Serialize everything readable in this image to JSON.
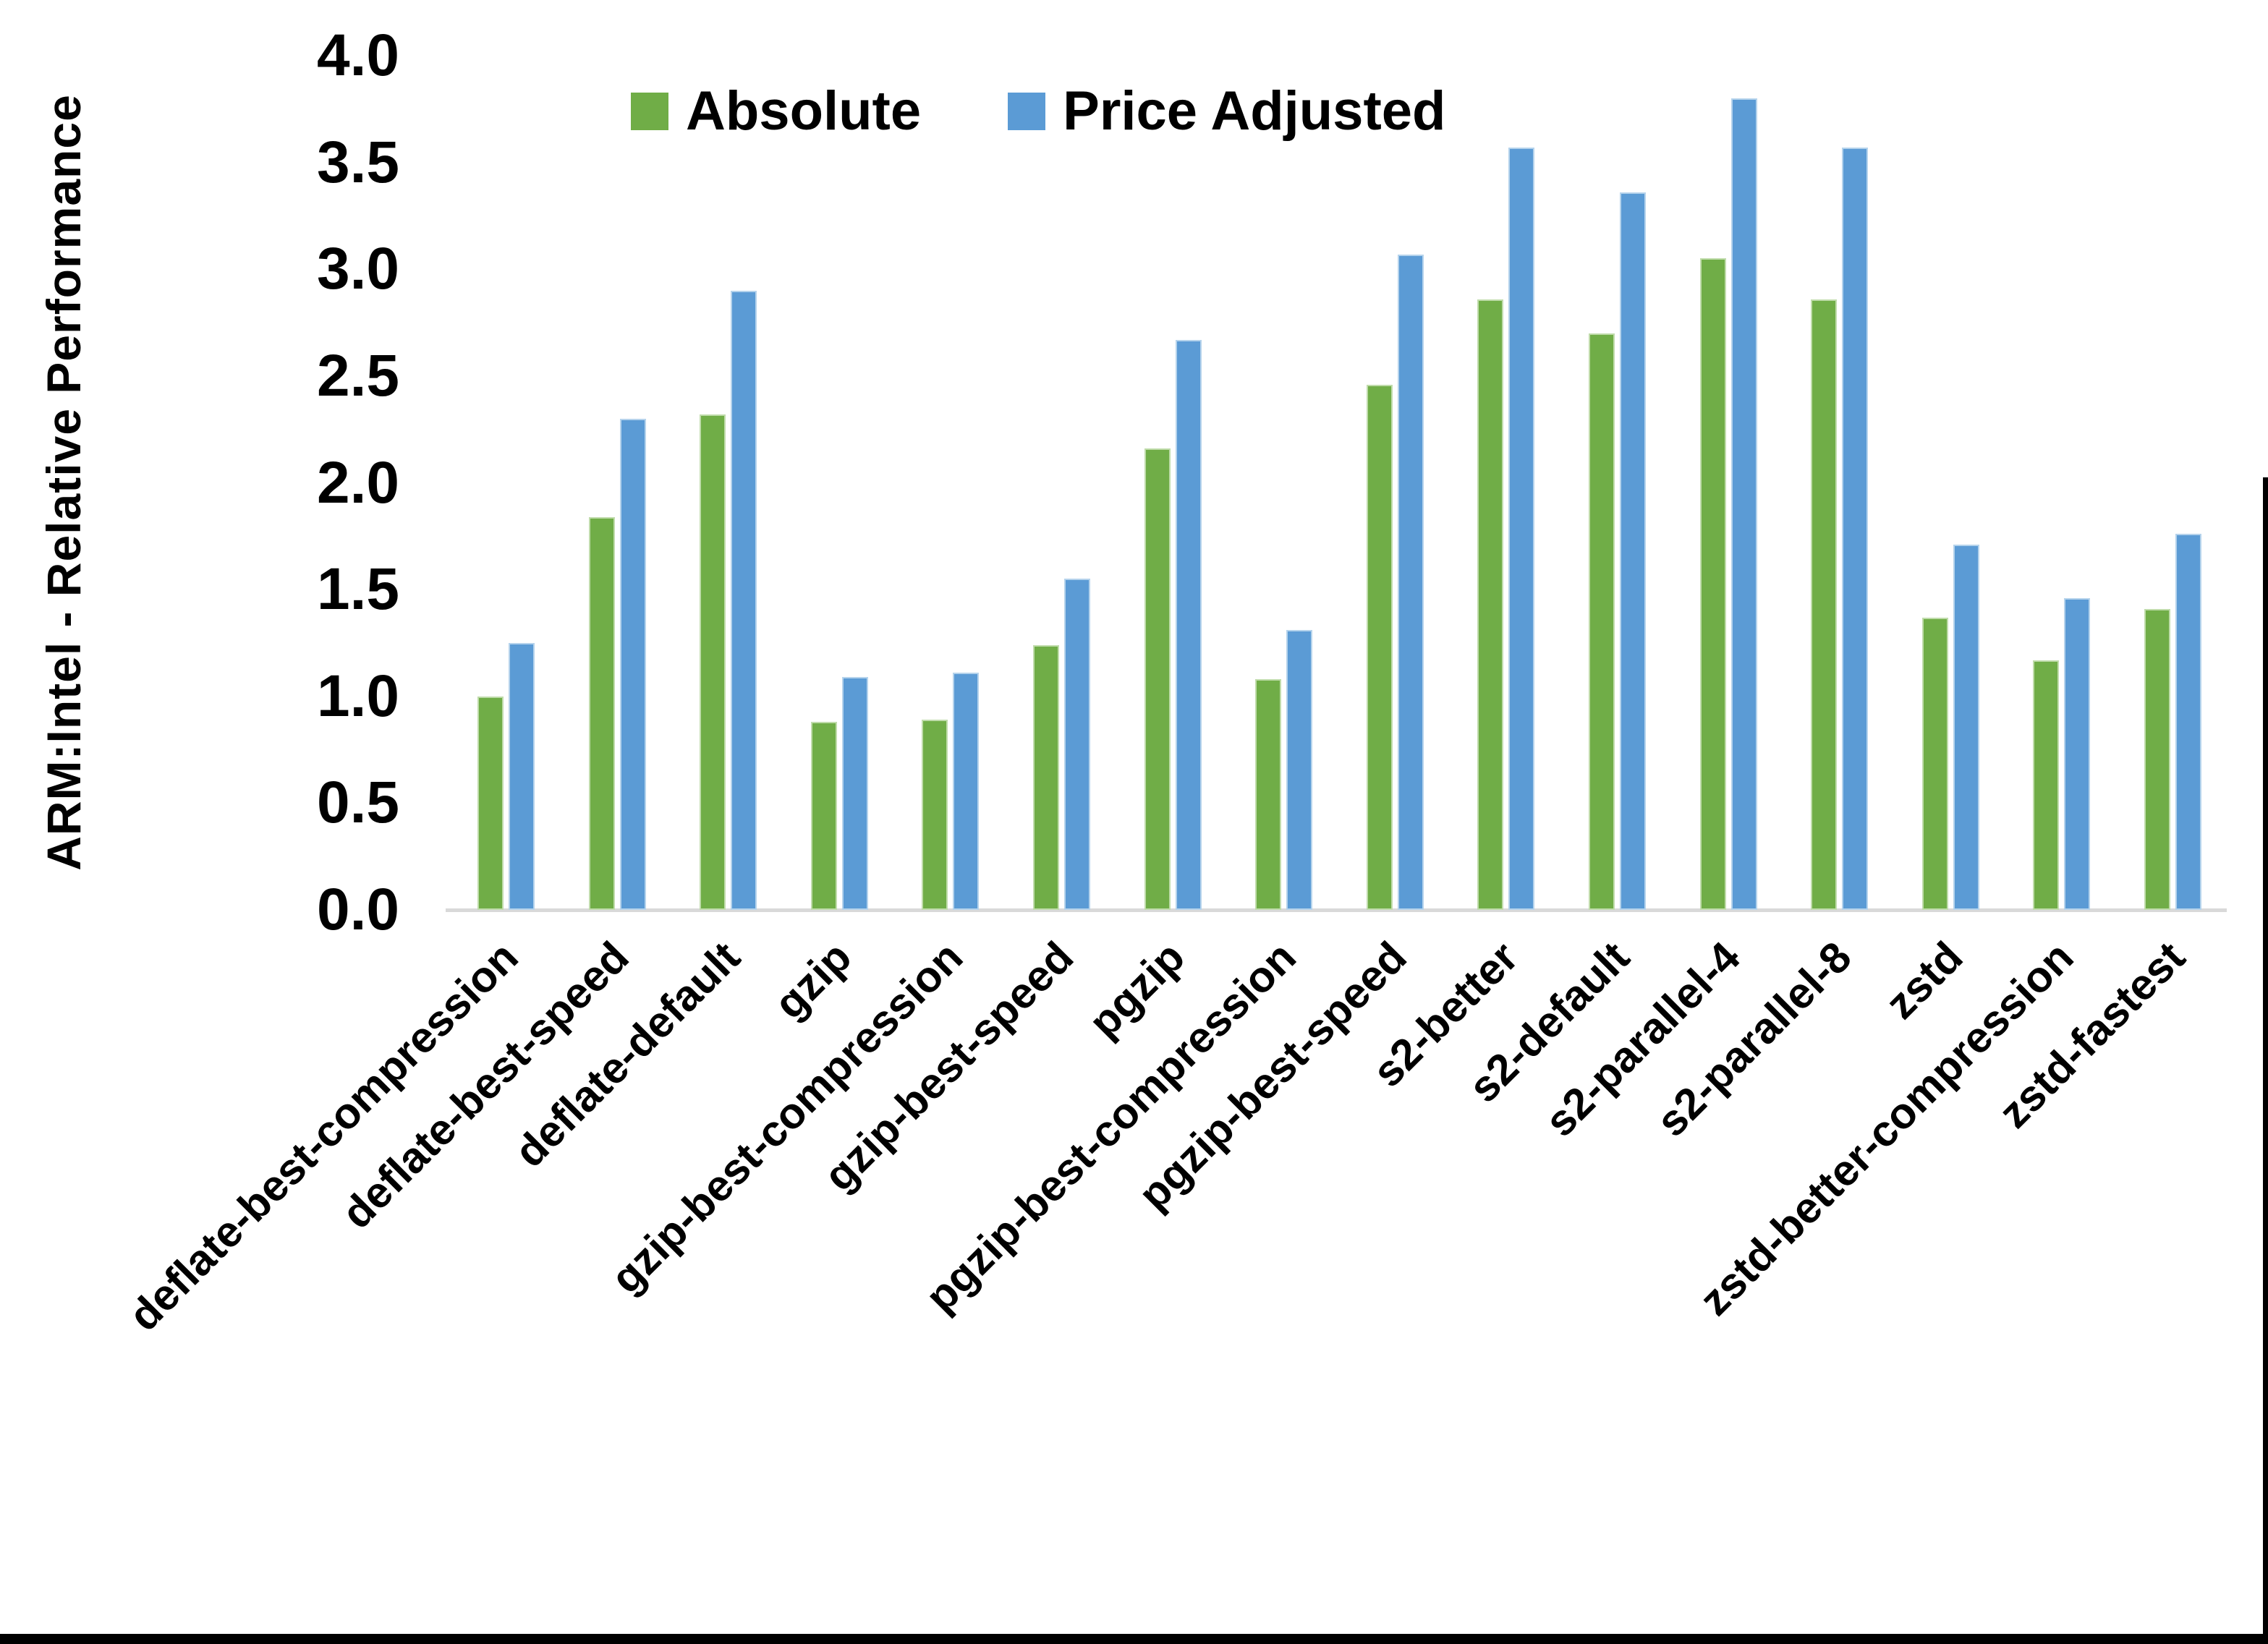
{
  "chart_data": {
    "type": "bar",
    "title": "",
    "y_axis_title": "ARM:Intel - Relative Performance",
    "categories": [
      "deflate-best-compression",
      "deflate-best-speed",
      "deflate-default",
      "gzip",
      "gzip-best-compression",
      "gzip-best-speed",
      "pgzip",
      "pgzip-best-compression",
      "pgzip-best-speed",
      "s2-better",
      "s2-default",
      "s2-parallel-4",
      "s2-parallel-8",
      "zstd",
      "zstd-better-compression",
      "zstd-fastest"
    ],
    "series": [
      {
        "name": "Absolute",
        "color": "#70AD47",
        "values": [
          1.0,
          1.84,
          2.32,
          0.88,
          0.89,
          1.24,
          2.16,
          1.08,
          2.46,
          2.86,
          2.7,
          3.05,
          2.86,
          1.37,
          1.17,
          1.41
        ]
      },
      {
        "name": "Price Adjusted",
        "color": "#5B9BD5",
        "values": [
          1.25,
          2.3,
          2.9,
          1.09,
          1.11,
          1.55,
          2.67,
          1.31,
          3.07,
          3.57,
          3.36,
          3.8,
          3.57,
          1.71,
          1.46,
          1.76
        ]
      }
    ],
    "ylim": [
      0.0,
      4.0
    ],
    "ytick_labels": [
      "0.0",
      "0.5",
      "1.0",
      "1.5",
      "2.0",
      "2.5",
      "3.0",
      "3.5",
      "4.0"
    ],
    "legend_position": "top",
    "grid": false
  }
}
